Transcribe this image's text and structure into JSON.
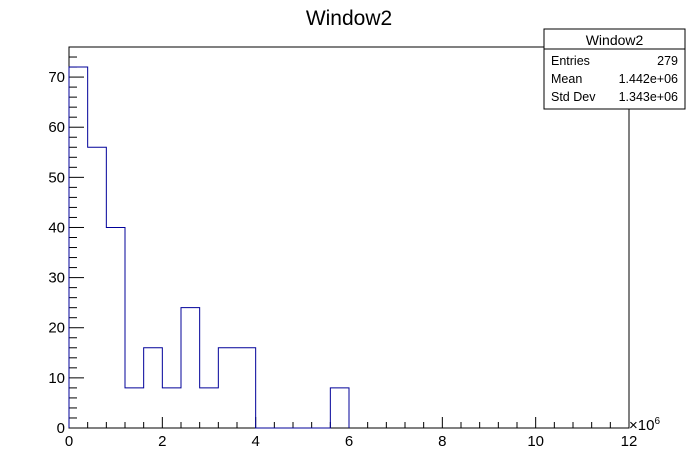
{
  "chart_data": {
    "type": "histogram",
    "title": "Window2",
    "xlabel": "",
    "ylabel": "",
    "x_exponent_label": "×10",
    "x_exponent": "6",
    "xlim": [
      0,
      12
    ],
    "ylim": [
      0,
      76
    ],
    "x_ticks": [
      "0",
      "2",
      "4",
      "6",
      "8",
      "10",
      "12"
    ],
    "y_ticks": [
      "0",
      "10",
      "20",
      "30",
      "40",
      "50",
      "60",
      "70"
    ],
    "bin_width": 0.4,
    "bins": [
      {
        "x0": 0.0,
        "x1": 0.4,
        "value": 72
      },
      {
        "x0": 0.4,
        "x1": 0.8,
        "value": 56
      },
      {
        "x0": 0.8,
        "x1": 1.2,
        "value": 40
      },
      {
        "x0": 1.2,
        "x1": 1.6,
        "value": 8
      },
      {
        "x0": 1.6,
        "x1": 2.0,
        "value": 16
      },
      {
        "x0": 2.0,
        "x1": 2.4,
        "value": 8
      },
      {
        "x0": 2.4,
        "x1": 2.8,
        "value": 24
      },
      {
        "x0": 2.8,
        "x1": 3.2,
        "value": 8
      },
      {
        "x0": 3.2,
        "x1": 3.6,
        "value": 16
      },
      {
        "x0": 3.6,
        "x1": 4.0,
        "value": 16
      },
      {
        "x0": 5.6,
        "x1": 6.0,
        "value": 8
      }
    ],
    "line_color": "#000099",
    "grid": false
  },
  "stats_box": {
    "title": "Window2",
    "rows": [
      {
        "label": "Entries",
        "value": "279"
      },
      {
        "label": "Mean",
        "value": "1.442e+06"
      },
      {
        "label": "Std Dev",
        "value": "1.343e+06"
      }
    ]
  }
}
